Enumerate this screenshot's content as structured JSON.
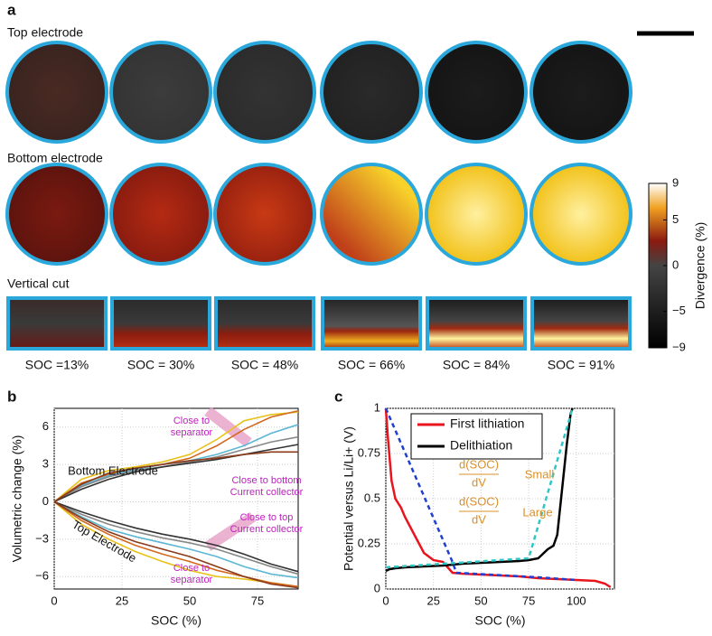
{
  "panel_a": {
    "label": "a",
    "rows": [
      "Top electrode",
      "Bottom electrode",
      "Vertical cut"
    ],
    "soc_labels": [
      "SOC =13%",
      "SOC = 30%",
      "SOC = 48%",
      "SOC = 66%",
      "SOC = 84%",
      "SOC = 91%"
    ],
    "colorbar": {
      "label": "Divergence (%)",
      "ticks": [
        9,
        5,
        0,
        -5,
        -9
      ],
      "lim": [
        -9,
        9
      ]
    }
  },
  "chart_data": [
    {
      "type": "line",
      "panel": "b",
      "xlabel": "SOC (%)",
      "ylabel": "Volumetric change (%)",
      "xlim": [
        0,
        90
      ],
      "ylim": [
        -7,
        7.5
      ],
      "xticks": [
        0,
        25,
        50,
        75
      ],
      "yticks": [
        -6,
        -3,
        0,
        3,
        6
      ],
      "grid": true,
      "x": [
        0,
        10,
        20,
        30,
        40,
        50,
        60,
        70,
        80,
        90
      ],
      "series": [
        {
          "color": "#e8c21a",
          "values": [
            0,
            1.8,
            2.5,
            2.8,
            3.2,
            3.8,
            5,
            6.5,
            7,
            7.2
          ]
        },
        {
          "color": "#d2691e",
          "values": [
            0,
            1.5,
            2.2,
            2.6,
            3,
            3.5,
            4.5,
            5.8,
            6.8,
            7.3
          ]
        },
        {
          "color": "#5bb7d5",
          "values": [
            0,
            1.3,
            2.1,
            2.6,
            3,
            3.3,
            3.8,
            4.5,
            5.5,
            6.2
          ]
        },
        {
          "color": "#888888",
          "values": [
            0,
            1.2,
            2,
            2.5,
            2.8,
            3.2,
            3.6,
            4.2,
            4.8,
            5.2
          ]
        },
        {
          "color": "#333333",
          "values": [
            0,
            1,
            1.8,
            2.4,
            2.8,
            3.1,
            3.4,
            3.8,
            4.2,
            4.6
          ]
        },
        {
          "color": "#8b3a1a",
          "values": [
            0,
            1.4,
            2.3,
            2.7,
            3,
            3.3,
            3.5,
            3.8,
            4,
            4
          ]
        },
        {
          "color": "#e8c21a",
          "values": [
            0,
            -1.8,
            -3,
            -4,
            -4.8,
            -5.5,
            -6,
            -6.2,
            -6.5,
            -6.8
          ]
        },
        {
          "color": "#d2691e",
          "values": [
            0,
            -1.5,
            -2.6,
            -3.5,
            -4.2,
            -4.8,
            -5.5,
            -6,
            -6.5,
            -6.8
          ]
        },
        {
          "color": "#5bb7d5",
          "values": [
            0,
            -1.2,
            -2.2,
            -2.8,
            -3.3,
            -3.8,
            -4.4,
            -5.2,
            -5.8,
            -6.1
          ]
        },
        {
          "color": "#888888",
          "values": [
            0,
            -1,
            -1.8,
            -2.4,
            -2.9,
            -3.3,
            -3.8,
            -4.5,
            -5.2,
            -5.8
          ]
        },
        {
          "color": "#333333",
          "values": [
            0,
            -0.8,
            -1.5,
            -2.1,
            -2.6,
            -3,
            -3.5,
            -4.2,
            -5,
            -5.6
          ]
        },
        {
          "color": "#8b3a1a",
          "values": [
            0,
            -1.3,
            -2.4,
            -3.2,
            -3.8,
            -4.4,
            -5.2,
            -6,
            -6.6,
            -6.9
          ]
        }
      ],
      "annotations": [
        {
          "lines": [
            "Close to",
            "separator"
          ]
        },
        {
          "lines": [
            "Close to bottom",
            "Current collector"
          ]
        },
        {
          "lines": [
            "Close to top",
            "Current collector"
          ]
        },
        {
          "lines": [
            "Close to",
            "separator"
          ]
        },
        {
          "lines": [
            "Bottom Electrode"
          ]
        },
        {
          "lines": [
            "Top Electrode"
          ]
        }
      ]
    },
    {
      "type": "line",
      "panel": "c",
      "xlabel": "SOC (%)",
      "ylabel": "Potential versus Li/Li+ (V)",
      "xlim": [
        0,
        120
      ],
      "ylim": [
        0,
        1
      ],
      "xticks": [
        0,
        25,
        50,
        75,
        100
      ],
      "yticks": [
        0,
        0.25,
        0.5,
        0.75,
        1
      ],
      "grid": true,
      "series": [
        {
          "name": "First lithiation",
          "color": "#e8141e",
          "x": [
            0,
            1,
            3,
            5,
            8,
            10,
            15,
            20,
            25,
            30,
            35,
            40,
            50,
            60,
            70,
            80,
            90,
            100,
            110,
            115,
            118
          ],
          "values": [
            1,
            0.85,
            0.6,
            0.5,
            0.45,
            0.4,
            0.3,
            0.2,
            0.16,
            0.15,
            0.09,
            0.085,
            0.08,
            0.075,
            0.07,
            0.06,
            0.055,
            0.05,
            0.045,
            0.03,
            0.01
          ]
        },
        {
          "name": "Delithiation",
          "color": "#000000",
          "x": [
            0,
            2,
            5,
            10,
            20,
            30,
            40,
            50,
            60,
            70,
            75,
            80,
            85,
            88,
            90,
            92,
            95,
            97,
            98
          ],
          "values": [
            0.1,
            0.11,
            0.115,
            0.12,
            0.125,
            0.13,
            0.14,
            0.145,
            0.15,
            0.155,
            0.16,
            0.17,
            0.22,
            0.24,
            0.3,
            0.5,
            0.8,
            0.97,
            1
          ]
        },
        {
          "color": "#1f3fd1",
          "dashed": true,
          "x": [
            0,
            35,
            37,
            80,
            100
          ],
          "values": [
            1,
            0.15,
            0.09,
            0.065,
            0.05
          ]
        },
        {
          "color": "#2cc6c6",
          "dashed": true,
          "x": [
            0,
            75,
            98
          ],
          "values": [
            0.12,
            0.17,
            1
          ]
        }
      ],
      "annotations": [
        {
          "lines": [
            "d(SOC)",
            "dV"
          ]
        },
        {
          "lines": [
            "Small"
          ]
        },
        {
          "lines": [
            "d(SOC)",
            "dV"
          ]
        },
        {
          "lines": [
            "Large"
          ]
        }
      ]
    }
  ]
}
